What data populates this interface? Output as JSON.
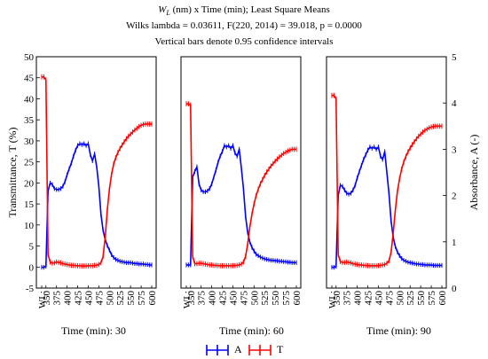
{
  "titles": {
    "line1": "W_L (nm) x Time (min); Least Square Means",
    "line1_var": "W",
    "line1_sub": "L",
    "line1_rest": " (nm) x Time (min); Least Square Means",
    "line2": "Wilks lambda = 0.03611, F(220, 2014) = 39.018, p = 0.0000",
    "line3": "Vertical bars denote 0.95 confidence intervals"
  },
  "colors": {
    "A": "#0000ff",
    "T": "#ff0000",
    "axis": "#000000"
  },
  "chart_data": {
    "type": "line",
    "ylabel_left": "Transmittance, T (%)",
    "ylabel_right": "Absorbance, A (-)",
    "ylim_left": [
      -5,
      50
    ],
    "ylim_right": [
      0,
      5
    ],
    "yticks_left": [
      "-5",
      "0",
      "5",
      "10",
      "15",
      "20",
      "25",
      "30",
      "35",
      "40",
      "45",
      "50"
    ],
    "yticks_right": [
      "0",
      "1",
      "2",
      "3",
      "4",
      "5"
    ],
    "xticks": [
      "WL:",
      "350",
      "375",
      "400",
      "425",
      "450",
      "475",
      "500",
      "525",
      "550",
      "575",
      "600"
    ],
    "legend": [
      {
        "name": "A",
        "color": "#0000ff"
      },
      {
        "name": "T",
        "color": "#ff0000"
      }
    ],
    "legend_position": "bottom-center",
    "x": [
      340,
      345,
      350,
      355,
      360,
      365,
      370,
      375,
      380,
      385,
      390,
      395,
      400,
      405,
      410,
      415,
      420,
      425,
      430,
      435,
      440,
      445,
      450,
      455,
      460,
      465,
      470,
      475,
      480,
      485,
      490,
      495,
      500,
      505,
      510,
      515,
      520,
      525,
      530,
      535,
      540,
      545,
      550,
      555,
      560,
      565,
      570,
      575,
      580,
      585,
      590,
      595,
      600
    ],
    "panels": [
      {
        "caption": "Time (min): 30",
        "series": [
          {
            "name": "A",
            "axis": "right",
            "values": [
              0.45,
              0.45,
              0.47,
              2.1,
              2.27,
              2.24,
              2.15,
              2.13,
              2.13,
              2.15,
              2.2,
              2.3,
              2.45,
              2.58,
              2.7,
              2.85,
              2.98,
              3.08,
              3.12,
              3.1,
              3.12,
              3.08,
              3.12,
              2.88,
              2.75,
              2.9,
              2.62,
              2.2,
              1.6,
              1.25,
              1.05,
              0.92,
              0.82,
              0.72,
              0.66,
              0.62,
              0.6,
              0.58,
              0.57,
              0.56,
              0.55,
              0.55,
              0.55,
              0.54,
              0.53,
              0.53,
              0.52,
              0.52,
              0.52,
              0.51,
              0.51,
              0.5,
              0.5
            ]
          },
          {
            "name": "T",
            "axis": "left",
            "values": [
              45.2,
              45.2,
              44.5,
              3.0,
              1.2,
              0.9,
              1.0,
              1.2,
              1.1,
              1.0,
              0.8,
              0.7,
              0.6,
              0.5,
              0.4,
              0.4,
              0.35,
              0.3,
              0.3,
              0.25,
              0.25,
              0.25,
              0.3,
              0.3,
              0.3,
              0.4,
              0.4,
              0.6,
              1.0,
              2.5,
              7.0,
              13.5,
              18.5,
              22.0,
              24.5,
              26.0,
              27.2,
              28.2,
              29.0,
              29.8,
              30.5,
              31.1,
              31.6,
              32.1,
              32.6,
              33.0,
              33.4,
              33.7,
              33.9,
              34.0,
              34.0,
              34.0,
              34.0
            ]
          }
        ]
      },
      {
        "caption": "Time (min): 60",
        "series": [
          {
            "name": "A",
            "axis": "right",
            "values": [
              0.5,
              0.5,
              0.5,
              2.4,
              2.52,
              2.62,
              2.25,
              2.12,
              2.08,
              2.08,
              2.1,
              2.15,
              2.25,
              2.4,
              2.55,
              2.72,
              2.85,
              2.95,
              3.08,
              3.05,
              3.08,
              3.02,
              3.08,
              2.92,
              2.85,
              3.0,
              2.6,
              2.15,
              1.55,
              1.2,
              1.0,
              0.88,
              0.8,
              0.73,
              0.7,
              0.67,
              0.65,
              0.63,
              0.62,
              0.61,
              0.6,
              0.6,
              0.59,
              0.59,
              0.58,
              0.58,
              0.57,
              0.57,
              0.56,
              0.56,
              0.55,
              0.55,
              0.55
            ]
          },
          {
            "name": "T",
            "axis": "left",
            "values": [
              38.8,
              38.8,
              38.5,
              2.5,
              0.8,
              0.8,
              0.9,
              0.9,
              0.8,
              0.7,
              0.6,
              0.5,
              0.5,
              0.4,
              0.4,
              0.35,
              0.3,
              0.3,
              0.3,
              0.3,
              0.3,
              0.3,
              0.35,
              0.35,
              0.4,
              0.5,
              0.7,
              1.2,
              2.5,
              5.5,
              9.5,
              12.5,
              15.0,
              17.0,
              18.5,
              19.8,
              20.8,
              21.8,
              22.6,
              23.3,
              24.0,
              24.6,
              25.2,
              25.7,
              26.2,
              26.6,
              27.0,
              27.3,
              27.6,
              27.8,
              28.0,
              28.0,
              28.0
            ]
          }
        ]
      },
      {
        "caption": "Time (min): 90",
        "series": [
          {
            "name": "A",
            "axis": "right",
            "values": [
              0.45,
              0.45,
              0.47,
              2.0,
              2.22,
              2.2,
              2.12,
              2.05,
              2.03,
              2.05,
              2.12,
              2.22,
              2.38,
              2.52,
              2.65,
              2.78,
              2.88,
              2.98,
              3.05,
              3.02,
              3.05,
              3.0,
              3.05,
              2.85,
              2.78,
              2.95,
              2.5,
              2.05,
              1.45,
              1.1,
              0.9,
              0.78,
              0.7,
              0.64,
              0.6,
              0.58,
              0.56,
              0.55,
              0.54,
              0.53,
              0.52,
              0.52,
              0.51,
              0.51,
              0.5,
              0.5,
              0.5,
              0.5,
              0.49,
              0.49,
              0.49,
              0.49,
              0.49
            ]
          },
          {
            "name": "T",
            "axis": "left",
            "values": [
              40.8,
              40.8,
              40.0,
              3.0,
              1.3,
              1.1,
              1.1,
              1.2,
              1.1,
              1.0,
              0.8,
              0.7,
              0.6,
              0.5,
              0.5,
              0.4,
              0.4,
              0.35,
              0.3,
              0.3,
              0.3,
              0.3,
              0.35,
              0.4,
              0.5,
              0.6,
              0.9,
              1.5,
              3.5,
              8.0,
              13.5,
              18.0,
              21.0,
              23.3,
              25.0,
              26.3,
              27.4,
              28.3,
              29.1,
              29.8,
              30.5,
              31.1,
              31.6,
              32.1,
              32.5,
              32.8,
              33.1,
              33.3,
              33.4,
              33.5,
              33.5,
              33.5,
              33.5
            ]
          }
        ]
      }
    ]
  }
}
